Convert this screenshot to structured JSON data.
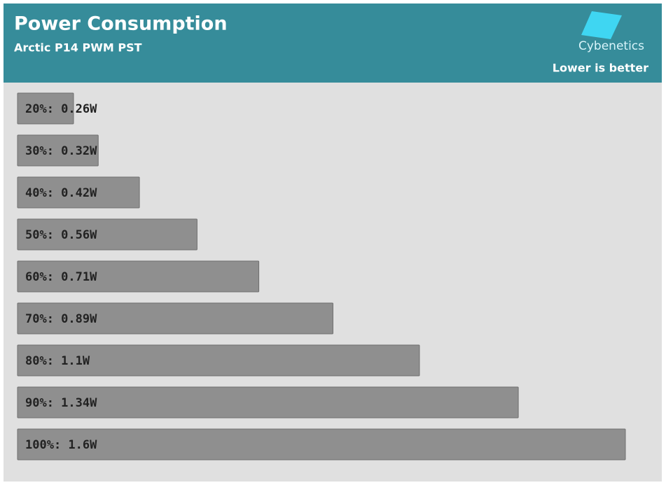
{
  "chart_data": {
    "type": "hbar",
    "title": "Power Consumption",
    "subtitle": "Arctic P14 PWM PST",
    "brand": "Cybenetics",
    "note": "Lower is better",
    "values": [
      0.26,
      0.32,
      0.42,
      0.56,
      0.71,
      0.89,
      1.1,
      1.34,
      1.6
    ],
    "value_labels": [
      "20%: 0.26W",
      "30%: 0.32W",
      "40%: 0.42W",
      "50%: 0.56W",
      "60%: 0.71W",
      "70%: 0.89W",
      "80%: 1.1W",
      "90%: 1.34W",
      "100%: 1.6W"
    ],
    "color": "#8f8f8f",
    "xlim": [
      0.124,
      1.6
    ]
  }
}
